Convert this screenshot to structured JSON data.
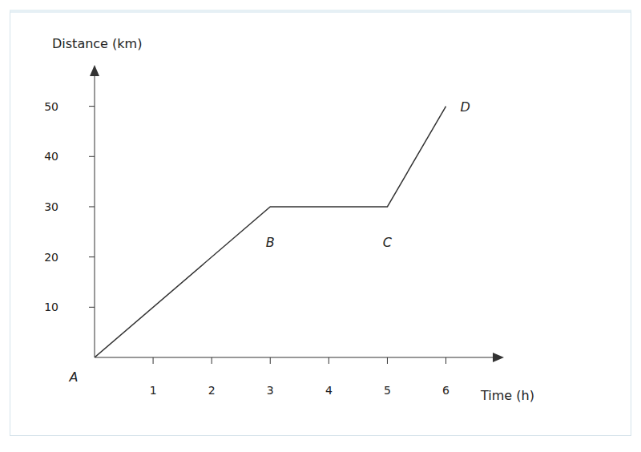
{
  "chart_data": {
    "type": "line",
    "x_label": "Time (h)",
    "y_label": "Distance (km)",
    "x": [
      0,
      3,
      5,
      6
    ],
    "values": [
      0,
      30,
      30,
      50
    ],
    "point_labels": [
      "A",
      "B",
      "C",
      "D"
    ],
    "color": "#333333",
    "xlim": [
      0,
      6.8
    ],
    "ylim": [
      0,
      56
    ],
    "xticks": [
      1,
      2,
      3,
      4,
      5,
      6
    ],
    "yticks": [
      10,
      20,
      30,
      40,
      50
    ],
    "grid": false
  }
}
